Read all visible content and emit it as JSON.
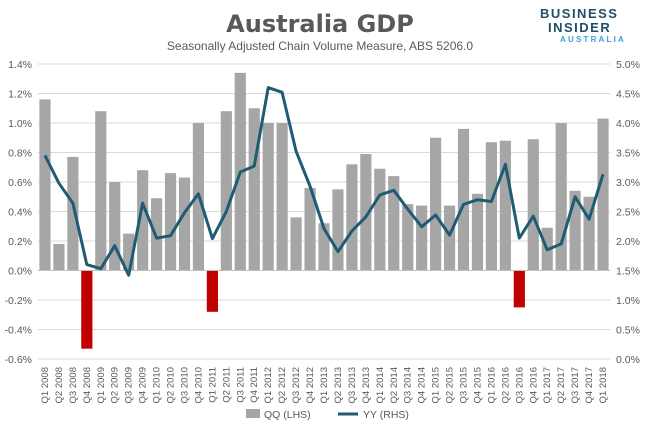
{
  "brand": {
    "line1": "BUSINESS",
    "line2": "INSIDER",
    "line3": "AUSTRALIA"
  },
  "colors": {
    "bar": "#a6a6a6",
    "bar_negative": "#c00000",
    "line": "#1f5c73",
    "grid": "#d9d9d9"
  },
  "chart_data": {
    "type": "bar",
    "title": "Australia GDP",
    "subtitle": "Seasonally Adjusted Chain Volume Measure, ABS 5206.0",
    "categories": [
      "Q1 2008",
      "Q2 2008",
      "Q3 2008",
      "Q4 2008",
      "Q1 2009",
      "Q2 2009",
      "Q3 2009",
      "Q4 2009",
      "Q1 2010",
      "Q2 2010",
      "Q3 2010",
      "Q4 2010",
      "Q1 2011",
      "Q2 2011",
      "Q3 2011",
      "Q4 2011",
      "Q1 2012",
      "Q2 2012",
      "Q3 2012",
      "Q4 2012",
      "Q1 2013",
      "Q2 2013",
      "Q3 2013",
      "Q4 2013",
      "Q1 2014",
      "Q2 2014",
      "Q3 2014",
      "Q4 2014",
      "Q1 2015",
      "Q2 2015",
      "Q3 2015",
      "Q4 2015",
      "Q1 2016",
      "Q2 2016",
      "Q3 2016",
      "Q4 2016",
      "Q1 2017",
      "Q2 2017",
      "Q3 2017",
      "Q4 2017",
      "Q1 2018"
    ],
    "series": [
      {
        "name": "QQ (LHS)",
        "type": "bar",
        "axis": "left",
        "values": [
          1.16,
          0.18,
          0.77,
          -0.53,
          1.08,
          0.6,
          0.25,
          0.68,
          0.49,
          0.66,
          0.63,
          1.0,
          -0.28,
          1.08,
          1.34,
          1.1,
          1.0,
          1.0,
          0.36,
          0.56,
          0.32,
          0.55,
          0.72,
          0.79,
          0.69,
          0.64,
          0.45,
          0.44,
          0.9,
          0.44,
          0.96,
          0.52,
          0.87,
          0.88,
          -0.25,
          0.89,
          0.29,
          1.0,
          0.54,
          0.5,
          1.03
        ]
      },
      {
        "name": "YY (RHS)",
        "type": "line",
        "axis": "right",
        "values": [
          3.45,
          2.98,
          2.64,
          1.6,
          1.53,
          1.92,
          1.42,
          2.64,
          2.05,
          2.09,
          2.48,
          2.8,
          2.04,
          2.5,
          3.17,
          3.27,
          4.6,
          4.52,
          3.52,
          2.93,
          2.21,
          1.82,
          2.17,
          2.41,
          2.78,
          2.86,
          2.54,
          2.24,
          2.44,
          2.1,
          2.62,
          2.7,
          2.67,
          3.3,
          2.05,
          2.42,
          1.85,
          1.95,
          2.75,
          2.37,
          3.13
        ]
      }
    ],
    "y_left": {
      "min": -0.6,
      "max": 1.4,
      "step": 0.2,
      "ticks": [
        "-0.6%",
        "-0.4%",
        "-0.2%",
        "0.0%",
        "0.2%",
        "0.4%",
        "0.6%",
        "0.8%",
        "1.0%",
        "1.2%",
        "1.4%"
      ]
    },
    "y_right": {
      "min": 0.0,
      "max": 5.0,
      "step": 0.5,
      "ticks": [
        "0.0%",
        "0.5%",
        "1.0%",
        "1.5%",
        "2.0%",
        "2.5%",
        "3.0%",
        "3.5%",
        "4.0%",
        "4.5%",
        "5.0%"
      ]
    },
    "grid": true,
    "legend_position": "bottom"
  }
}
